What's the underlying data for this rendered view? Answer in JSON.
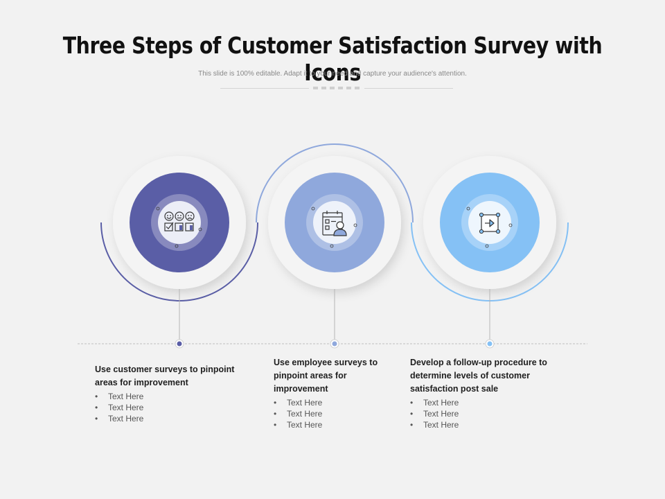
{
  "header": {
    "title": "Three Steps of Customer Satisfaction Survey with Icons",
    "subtitle": "This slide is 100% editable. Adapt it to your need and capture your audience's attention."
  },
  "colors": {
    "step1": "#5a5ea6",
    "step2": "#8fa8dc",
    "step3": "#85c1f5",
    "background": "#f2f2f2"
  },
  "steps": [
    {
      "icon": "survey-faces-icon",
      "heading": "Use customer surveys to pinpoint areas for improvement",
      "bullets": [
        "Text Here",
        "Text Here",
        "Text Here"
      ]
    },
    {
      "icon": "employee-checklist-icon",
      "heading": "Use employee surveys to pinpoint areas for improvement",
      "bullets": [
        "Text Here",
        "Text Here",
        "Text Here"
      ]
    },
    {
      "icon": "follow-up-arrow-icon",
      "heading": "Develop a follow-up procedure to determine levels of customer satisfaction post sale",
      "bullets": [
        "Text Here",
        "Text Here",
        "Text Here"
      ]
    }
  ]
}
